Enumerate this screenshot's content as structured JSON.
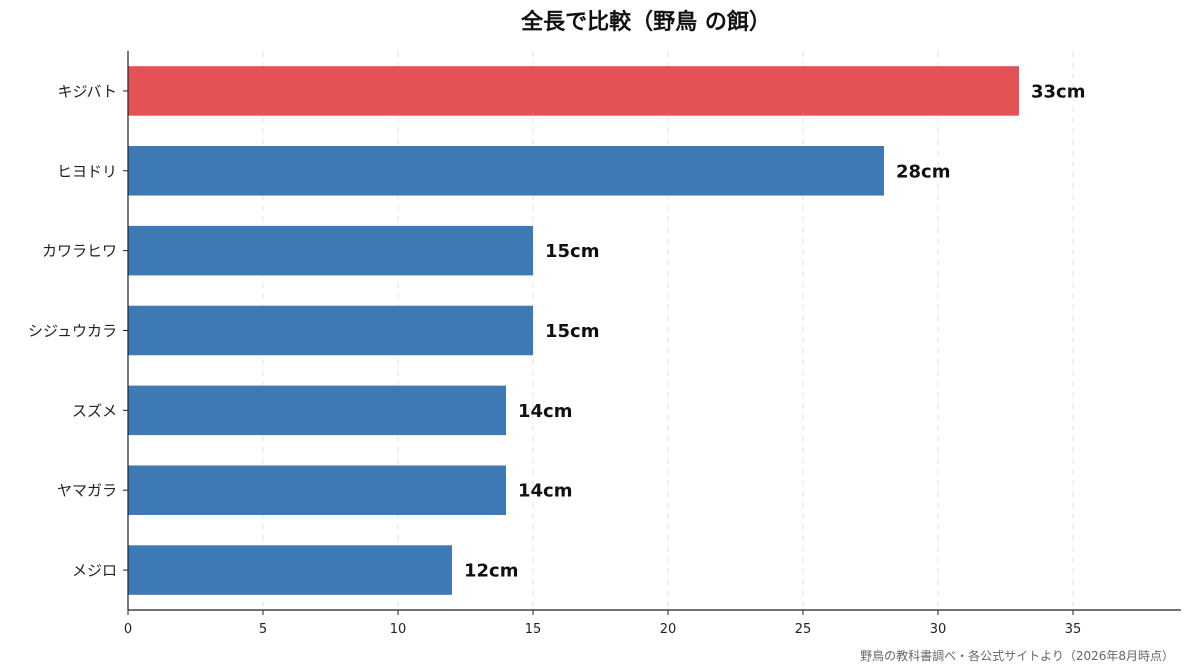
{
  "chart_data": {
    "type": "bar",
    "orientation": "horizontal",
    "title": "全長で比較（野鳥 の餌）",
    "source": "野鳥の教科書調べ・各公式サイトより（2026年8月時点）",
    "categories": [
      "キジバト",
      "ヒヨドリ",
      "カワラヒワ",
      "シジュウカラ",
      "スズメ",
      "ヤマガラ",
      "メジロ"
    ],
    "values": [
      33,
      28,
      15,
      15,
      14,
      14,
      12
    ],
    "value_labels": [
      "33cm",
      "28cm",
      "15cm",
      "15cm",
      "14cm",
      "14cm",
      "12cm"
    ],
    "unit": "cm",
    "xlim": [
      0,
      39
    ],
    "xticks": [
      0,
      5,
      10,
      15,
      20,
      25,
      30,
      35
    ],
    "grid": "x-dashed",
    "colors": {
      "highlight": "#e45256",
      "default": "#3d79b5"
    },
    "highlight_index": 0
  }
}
